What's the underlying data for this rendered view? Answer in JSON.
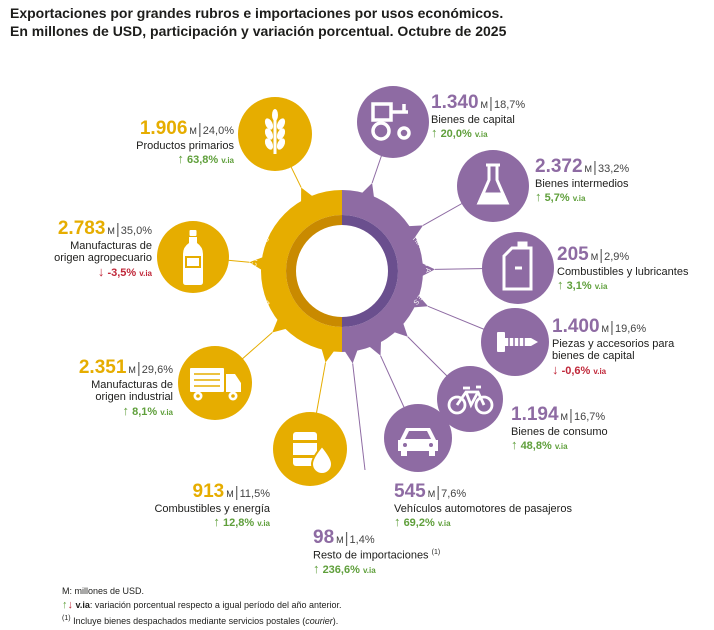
{
  "title_line1": "Exportaciones por grandes rubros e importaciones por usos económicos.",
  "title_line2": "En millones de USD, participación y variación porcentual. Octubre de 2025",
  "colors": {
    "exports": "#e6ad00",
    "imports": "#8e6ba3",
    "exports_dark": "#c98a00",
    "imports_dark": "#6a4f8e",
    "up": "#5f9f3b",
    "down": "#c0283a"
  },
  "ring_labels": {
    "exports": "EXPORTACIONES",
    "imports": "IMPORTACIONES"
  },
  "chart_data": {
    "type": "pie",
    "unit": "M",
    "unit_meaning": "millones de USD",
    "period": "Octubre de 2025",
    "exports": [
      {
        "value": "1.906",
        "share": "24,0%",
        "name": "Productos primarios",
        "variation": "63,8%",
        "direction": "up",
        "icon": "wheat-icon"
      },
      {
        "value": "2.783",
        "share": "35,0%",
        "name": "Manufacturas de origen agropecuario",
        "variation": "-3,5%",
        "direction": "down",
        "icon": "bottle-icon"
      },
      {
        "value": "2.351",
        "share": "29,6%",
        "name": "Manufacturas de origen industrial",
        "variation": "8,1%",
        "direction": "up",
        "icon": "truck-icon"
      },
      {
        "value": "913",
        "share": "11,5%",
        "name": "Combustibles y energía",
        "variation": "12,8%",
        "direction": "up",
        "icon": "fuel-barrel-icon"
      }
    ],
    "imports": [
      {
        "value": "1.340",
        "share": "18,7%",
        "name": "Bienes de capital",
        "variation": "20,0%",
        "direction": "up",
        "icon": "tractor-icon"
      },
      {
        "value": "2.372",
        "share": "33,2%",
        "name": "Bienes intermedios",
        "variation": "5,7%",
        "direction": "up",
        "icon": "flask-icon"
      },
      {
        "value": "205",
        "share": "2,9%",
        "name": "Combustibles y lubricantes",
        "variation": "3,1%",
        "direction": "up",
        "icon": "jerrycan-icon"
      },
      {
        "value": "1.400",
        "share": "19,6%",
        "name": "Piezas y accesorios para bienes de capital",
        "variation": "-0,6%",
        "direction": "down",
        "icon": "screw-icon"
      },
      {
        "value": "1.194",
        "share": "16,7%",
        "name": "Bienes de consumo",
        "variation": "48,8%",
        "direction": "up",
        "icon": "bicycle-icon"
      },
      {
        "value": "545",
        "share": "7,6%",
        "name": "Vehículos automotores de pasajeros",
        "variation": "69,2%",
        "direction": "up",
        "icon": "car-icon"
      },
      {
        "value": "98",
        "share": "1,4%",
        "name": "Resto de importaciones",
        "name_note": "(1)",
        "variation": "236,6%",
        "direction": "up",
        "icon": "boxes-icon"
      }
    ]
  },
  "labels": {
    "ex_primarios": {
      "value": "1.906",
      "unit": "M",
      "share": "24,0%",
      "name": "Productos primarios",
      "var": "63,8%",
      "via": "v.ia"
    },
    "ex_moa": {
      "value": "2.783",
      "unit": "M",
      "share": "35,0%",
      "name1": "Manufacturas de",
      "name2": "origen agropecuario",
      "var": "-3,5%",
      "via": "v.ia"
    },
    "ex_moi": {
      "value": "2.351",
      "unit": "M",
      "share": "29,6%",
      "name1": "Manufacturas de",
      "name2": "origen industrial",
      "var": "8,1%",
      "via": "v.ia"
    },
    "ex_comb": {
      "value": "913",
      "unit": "M",
      "share": "11,5%",
      "name": "Combustibles y energía",
      "var": "12,8%",
      "via": "v.ia"
    },
    "im_capital": {
      "value": "1.340",
      "unit": "M",
      "share": "18,7%",
      "name": "Bienes de capital",
      "var": "20,0%",
      "via": "v.ia"
    },
    "im_intermedios": {
      "value": "2.372",
      "unit": "M",
      "share": "33,2%",
      "name": "Bienes intermedios",
      "var": "5,7%",
      "via": "v.ia"
    },
    "im_comb": {
      "value": "205",
      "unit": "M",
      "share": "2,9%",
      "name": "Combustibles y lubricantes",
      "var": "3,1%",
      "via": "v.ia"
    },
    "im_piezas": {
      "value": "1.400",
      "unit": "M",
      "share": "19,6%",
      "name1": "Piezas y accesorios para",
      "name2": "bienes de capital",
      "var": "-0,6%",
      "via": "v.ia"
    },
    "im_consumo": {
      "value": "1.194",
      "unit": "M",
      "share": "16,7%",
      "name": "Bienes de consumo",
      "var": "48,8%",
      "via": "v.ia"
    },
    "im_vehiculos": {
      "value": "545",
      "unit": "M",
      "share": "7,6%",
      "name": "Vehículos automotores de pasajeros",
      "var": "69,2%",
      "via": "v.ia"
    },
    "im_resto": {
      "value": "98",
      "unit": "M",
      "share": "1,4%",
      "name": "Resto de importaciones",
      "note": "(1)",
      "var": "236,6%",
      "via": "v.ia"
    }
  },
  "notes": {
    "line1": "M: millones de USD.",
    "via_label": "v.ia",
    "line2": ": variación porcentual respecto a igual período del año anterior.",
    "line3_mark": "(1)",
    "line3": " Incluye bienes despachados mediante servicios postales (",
    "line3_em": "courier",
    "line3_end": ")."
  }
}
